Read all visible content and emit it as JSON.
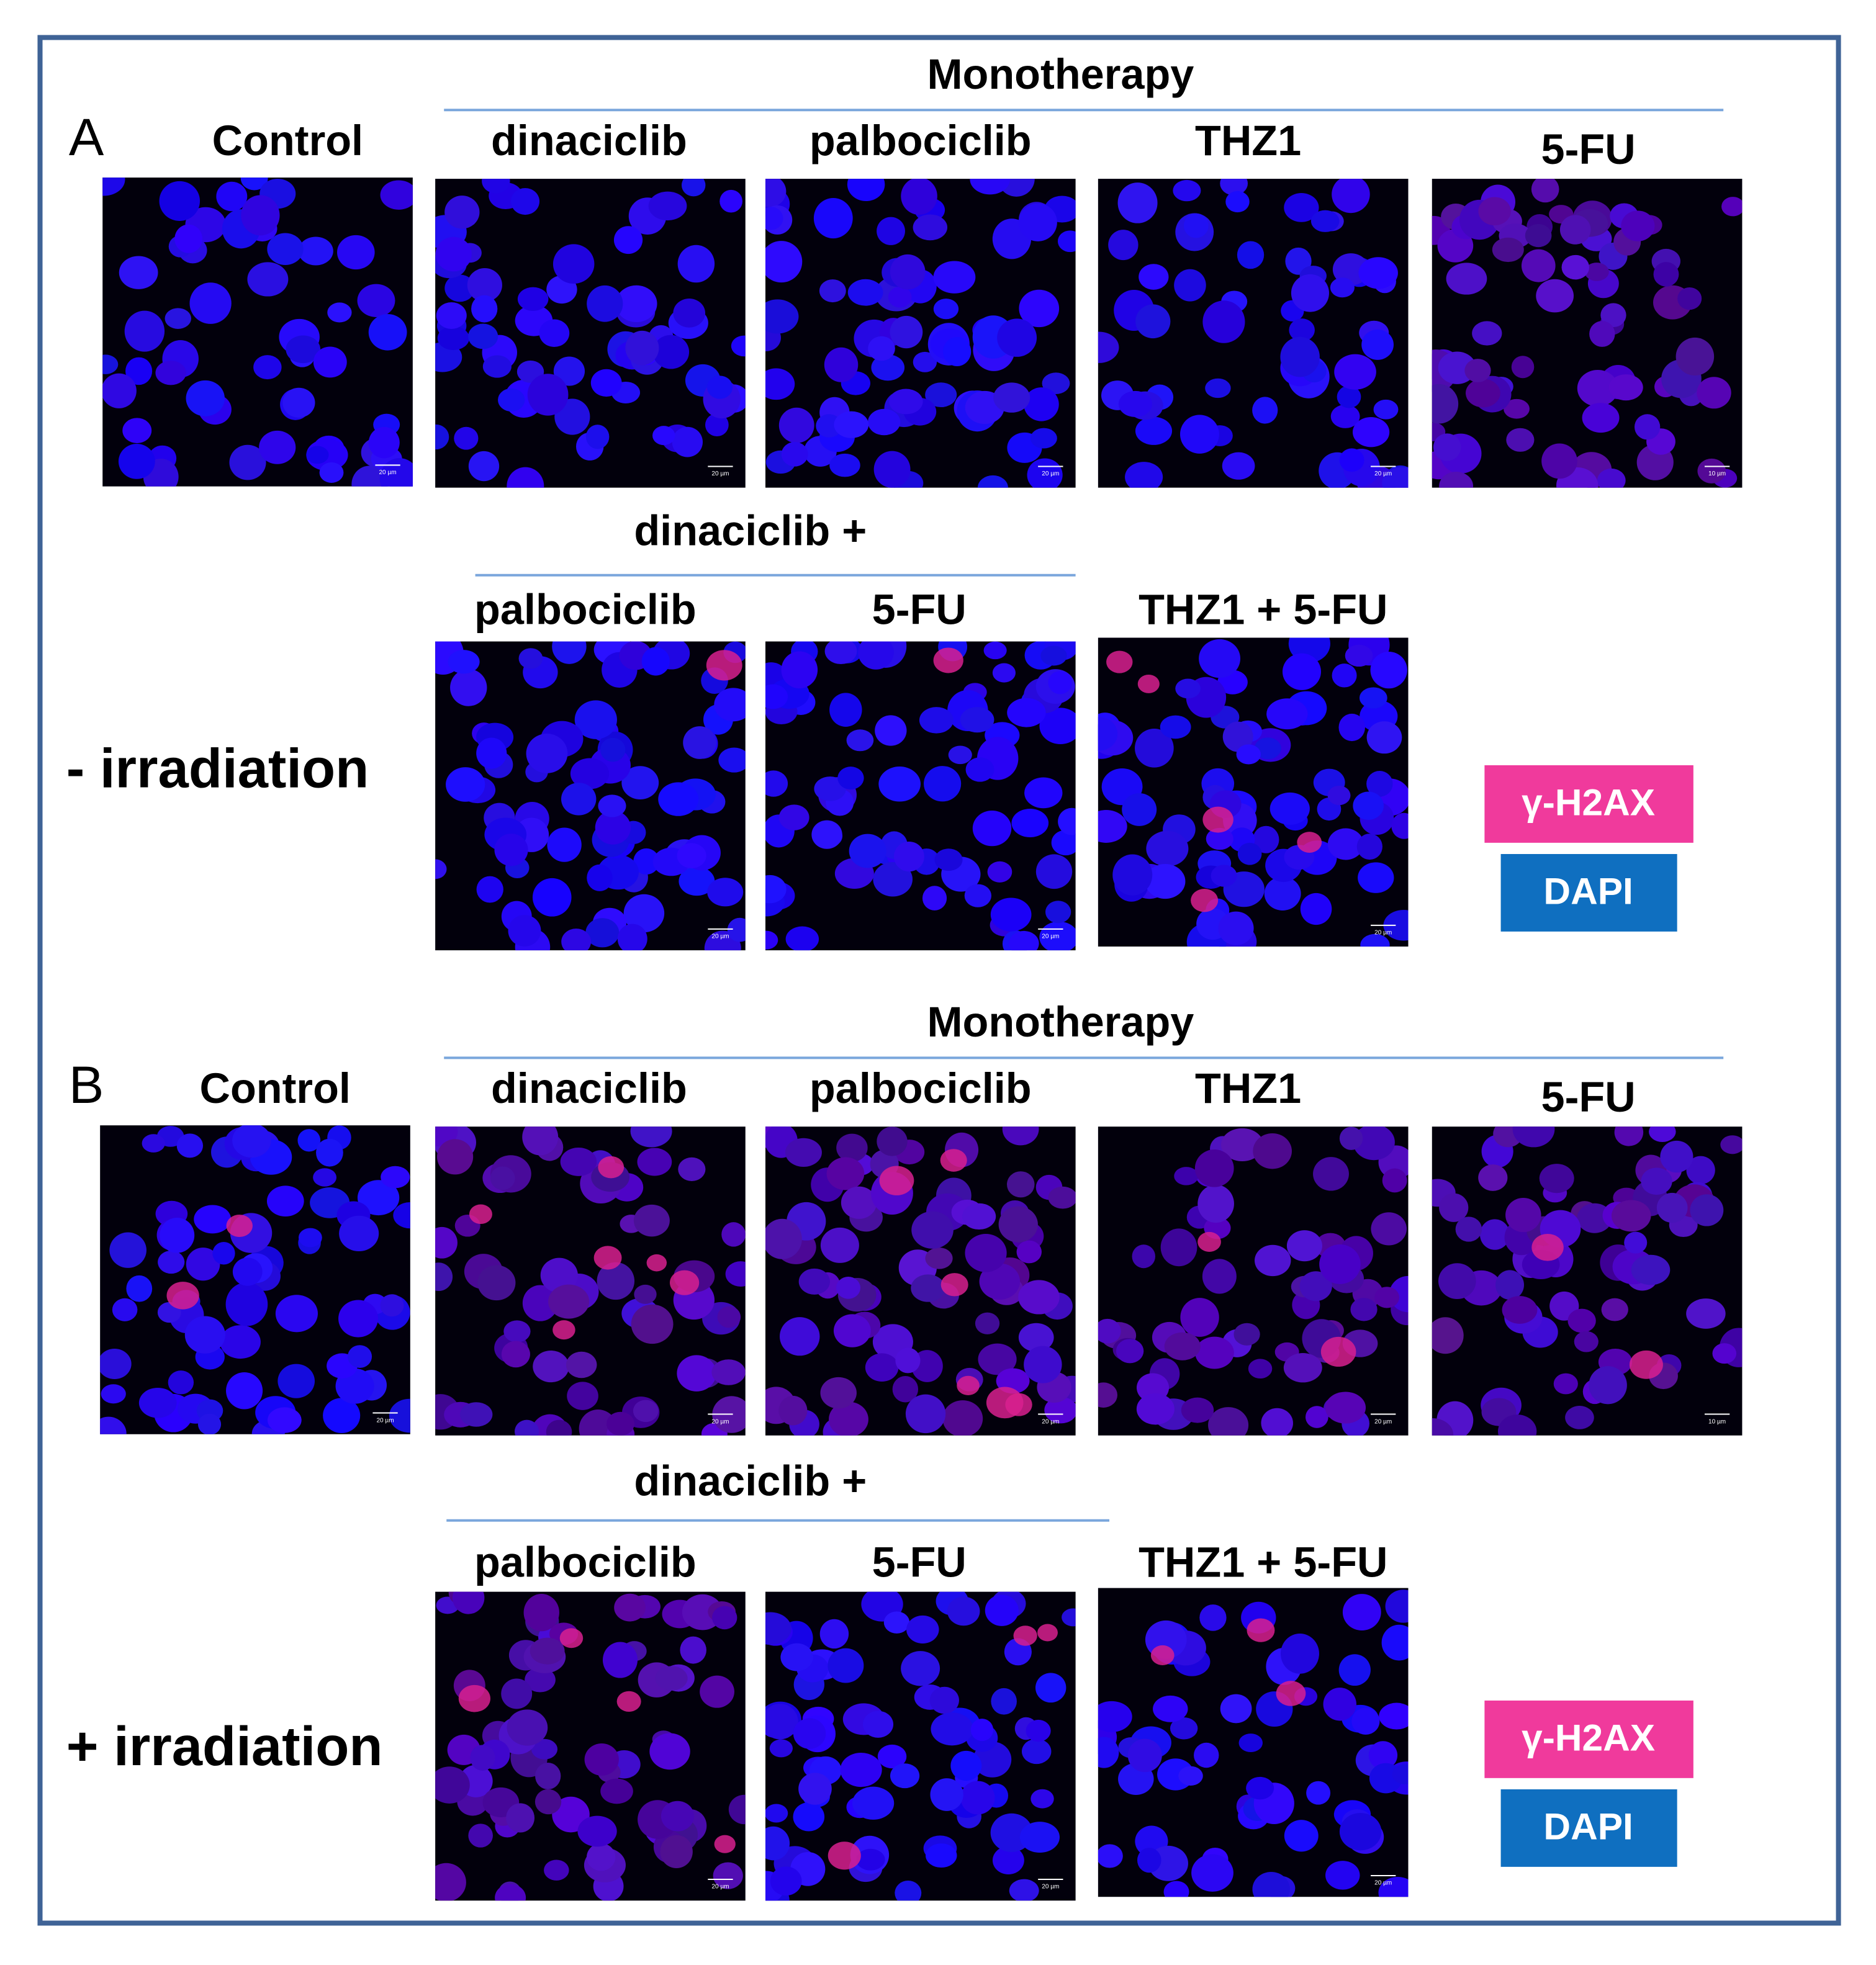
{
  "panels": [
    {
      "label": "A",
      "group_header": "Monotherapy",
      "control": "Control",
      "monotherapy": [
        "dinaciclib",
        "palbociclib",
        "THZ1",
        "5-FU"
      ],
      "combo_header": "dinaciclib +",
      "combos": [
        "palbociclib",
        "5-FU"
      ],
      "triple": "THZ1 + 5-FU",
      "condition": "- irradiation",
      "legend": [
        "γ-H2AX",
        "DAPI"
      ],
      "scale_bars": [
        "20 µm",
        "20 µm",
        "20 µm",
        "20 µm",
        "10 µm",
        "20 µm",
        "20 µm",
        "20 µm"
      ]
    },
    {
      "label": "B",
      "group_header": "Monotherapy",
      "control": "Control",
      "monotherapy": [
        "dinaciclib",
        "palbociclib",
        "THZ1",
        "5-FU"
      ],
      "combo_header": "dinaciclib +",
      "combos": [
        "palbociclib",
        "5-FU"
      ],
      "triple": "THZ1 + 5-FU",
      "condition": "+ irradiation",
      "legend": [
        "γ-H2AX",
        "DAPI"
      ],
      "scale_bars": [
        "20 µm",
        "20 µm",
        "20 µm",
        "20 µm",
        "10 µm",
        "20 µm",
        "20 µm",
        "20 µm"
      ]
    }
  ]
}
